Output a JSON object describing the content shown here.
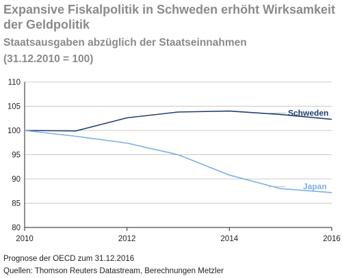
{
  "title": "Expansive Fiskalpolitik in Schweden erhöht Wirksamkeit der Geldpolitik",
  "subtitle": "Staatsausgaben abzüglich der Staatseinnahmen",
  "subtitle_base": "(31.12.2010 = 100)",
  "footnotes": {
    "forecast_note": "Prognose der OECD zum 31.12.2016",
    "sources": "Quellen: Thomson Reuters Datastream, Berechnungen Metzler"
  },
  "chart_data": {
    "type": "line",
    "x": [
      2010,
      2011,
      2012,
      2013,
      2014,
      2015,
      2016
    ],
    "xticks": [
      2010,
      2012,
      2014,
      2016
    ],
    "xlim": [
      2010,
      2016
    ],
    "ylim": [
      80,
      110
    ],
    "yticks": [
      80,
      85,
      90,
      95,
      100,
      105,
      110
    ],
    "grid": true,
    "series": [
      {
        "name": "Schweden",
        "color": "#1f3f6e",
        "values": [
          100,
          99.9,
          102.6,
          103.8,
          104.0,
          103.3,
          102.3
        ]
      },
      {
        "name": "Japan",
        "color": "#7aaee8",
        "values": [
          100,
          98.8,
          97.4,
          95.0,
          90.8,
          88.0,
          87.2
        ]
      }
    ]
  }
}
